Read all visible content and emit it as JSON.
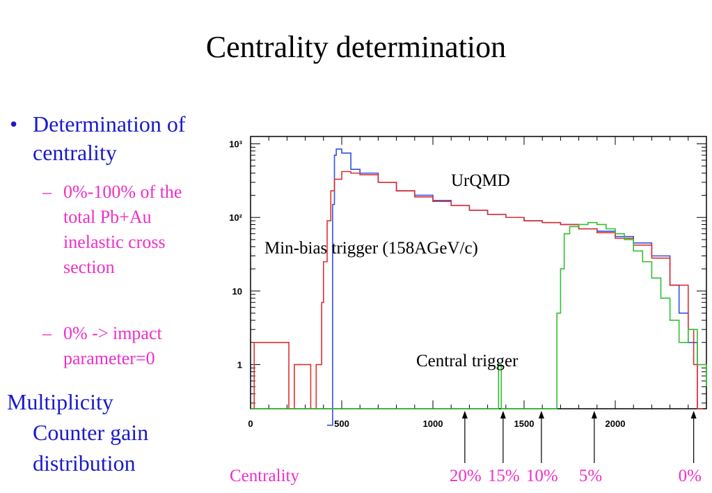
{
  "slide": {
    "title": "Centrality determination",
    "bullet1": "Determination of centrality",
    "sub1": "0%-100% of the total Pb+Au inelastic cross section",
    "sub2": "0% -> impact parameter=0",
    "bullet2_line1": "Multiplicity",
    "bullet2_line2": "Counter gain distribution"
  },
  "annotations": {
    "urqmd": "UrQMD",
    "minbias": "Min-bias trigger (158AGeV/c)",
    "central": "Central trigger"
  },
  "centrality": {
    "label": "Centrality",
    "marks": [
      {
        "label": "20%",
        "x": 1175
      },
      {
        "label": "15%",
        "x": 1385
      },
      {
        "label": "10%",
        "x": 1595
      },
      {
        "label": "5%",
        "x": 1885
      },
      {
        "label": "0%",
        "x": 2430
      }
    ]
  },
  "colors": {
    "text_blue": "#1a1acc",
    "pink": "#ee2fc6",
    "red": "#e03030",
    "blue": "#3050e0",
    "green": "#30c030"
  },
  "chart_data": {
    "type": "line",
    "xlim": [
      0,
      2500
    ],
    "ylim_log10": [
      -0.6,
      3.1
    ],
    "log_y": true,
    "x_ticks": [
      0,
      500,
      1000,
      1500,
      2000
    ],
    "x_tick_labels": [
      "0",
      "500",
      "1000",
      "1500",
      "2000"
    ],
    "y_ticks": [
      1,
      10,
      100,
      1000
    ],
    "y_tick_labels": [
      "1",
      "10",
      "10²",
      "10³"
    ],
    "series": [
      {
        "name": "UrQMD",
        "color": "#3050e0",
        "x": [
          420,
          450,
          460,
          470,
          500,
          550,
          600,
          700,
          800,
          900,
          1000,
          1100,
          1200,
          1300,
          1400,
          1500,
          1600,
          1700,
          1800,
          1900,
          2000,
          2100,
          2200,
          2300,
          2350,
          2400,
          2450
        ],
        "y": [
          0.15,
          150,
          700,
          850,
          750,
          450,
          400,
          300,
          230,
          200,
          170,
          145,
          125,
          110,
          100,
          90,
          85,
          80,
          70,
          65,
          55,
          45,
          30,
          12,
          5,
          2,
          0.25
        ]
      },
      {
        "name": "Min-bias trigger (158AGeV/c)",
        "color": "#e03030",
        "x": [
          0,
          20,
          210,
          240,
          330,
          360,
          390,
          400,
          420,
          440,
          460,
          500,
          550,
          600,
          700,
          800,
          900,
          1000,
          1100,
          1200,
          1300,
          1400,
          1500,
          1600,
          1700,
          1800,
          1900,
          2000,
          2100,
          2200,
          2300,
          2400,
          2430,
          2450
        ],
        "y": [
          0.25,
          2,
          0.25,
          1,
          0.25,
          1,
          7,
          25,
          90,
          230,
          330,
          420,
          400,
          380,
          300,
          230,
          190,
          165,
          145,
          125,
          110,
          100,
          90,
          85,
          80,
          70,
          62,
          52,
          42,
          28,
          12,
          3,
          1,
          0.25
        ]
      },
      {
        "name": "Central trigger",
        "color": "#30c030",
        "x": [
          0,
          1360,
          1375,
          1390,
          1660,
          1680,
          1700,
          1720,
          1750,
          1800,
          1850,
          1900,
          1950,
          2000,
          2050,
          2100,
          2150,
          2200,
          2250,
          2300,
          2350,
          2400,
          2450,
          2500
        ],
        "y": [
          0.25,
          1,
          0.25,
          0.25,
          0.25,
          5,
          20,
          60,
          75,
          80,
          85,
          80,
          70,
          60,
          50,
          35,
          25,
          15,
          8,
          4,
          2,
          3,
          1,
          0.5
        ]
      }
    ]
  }
}
